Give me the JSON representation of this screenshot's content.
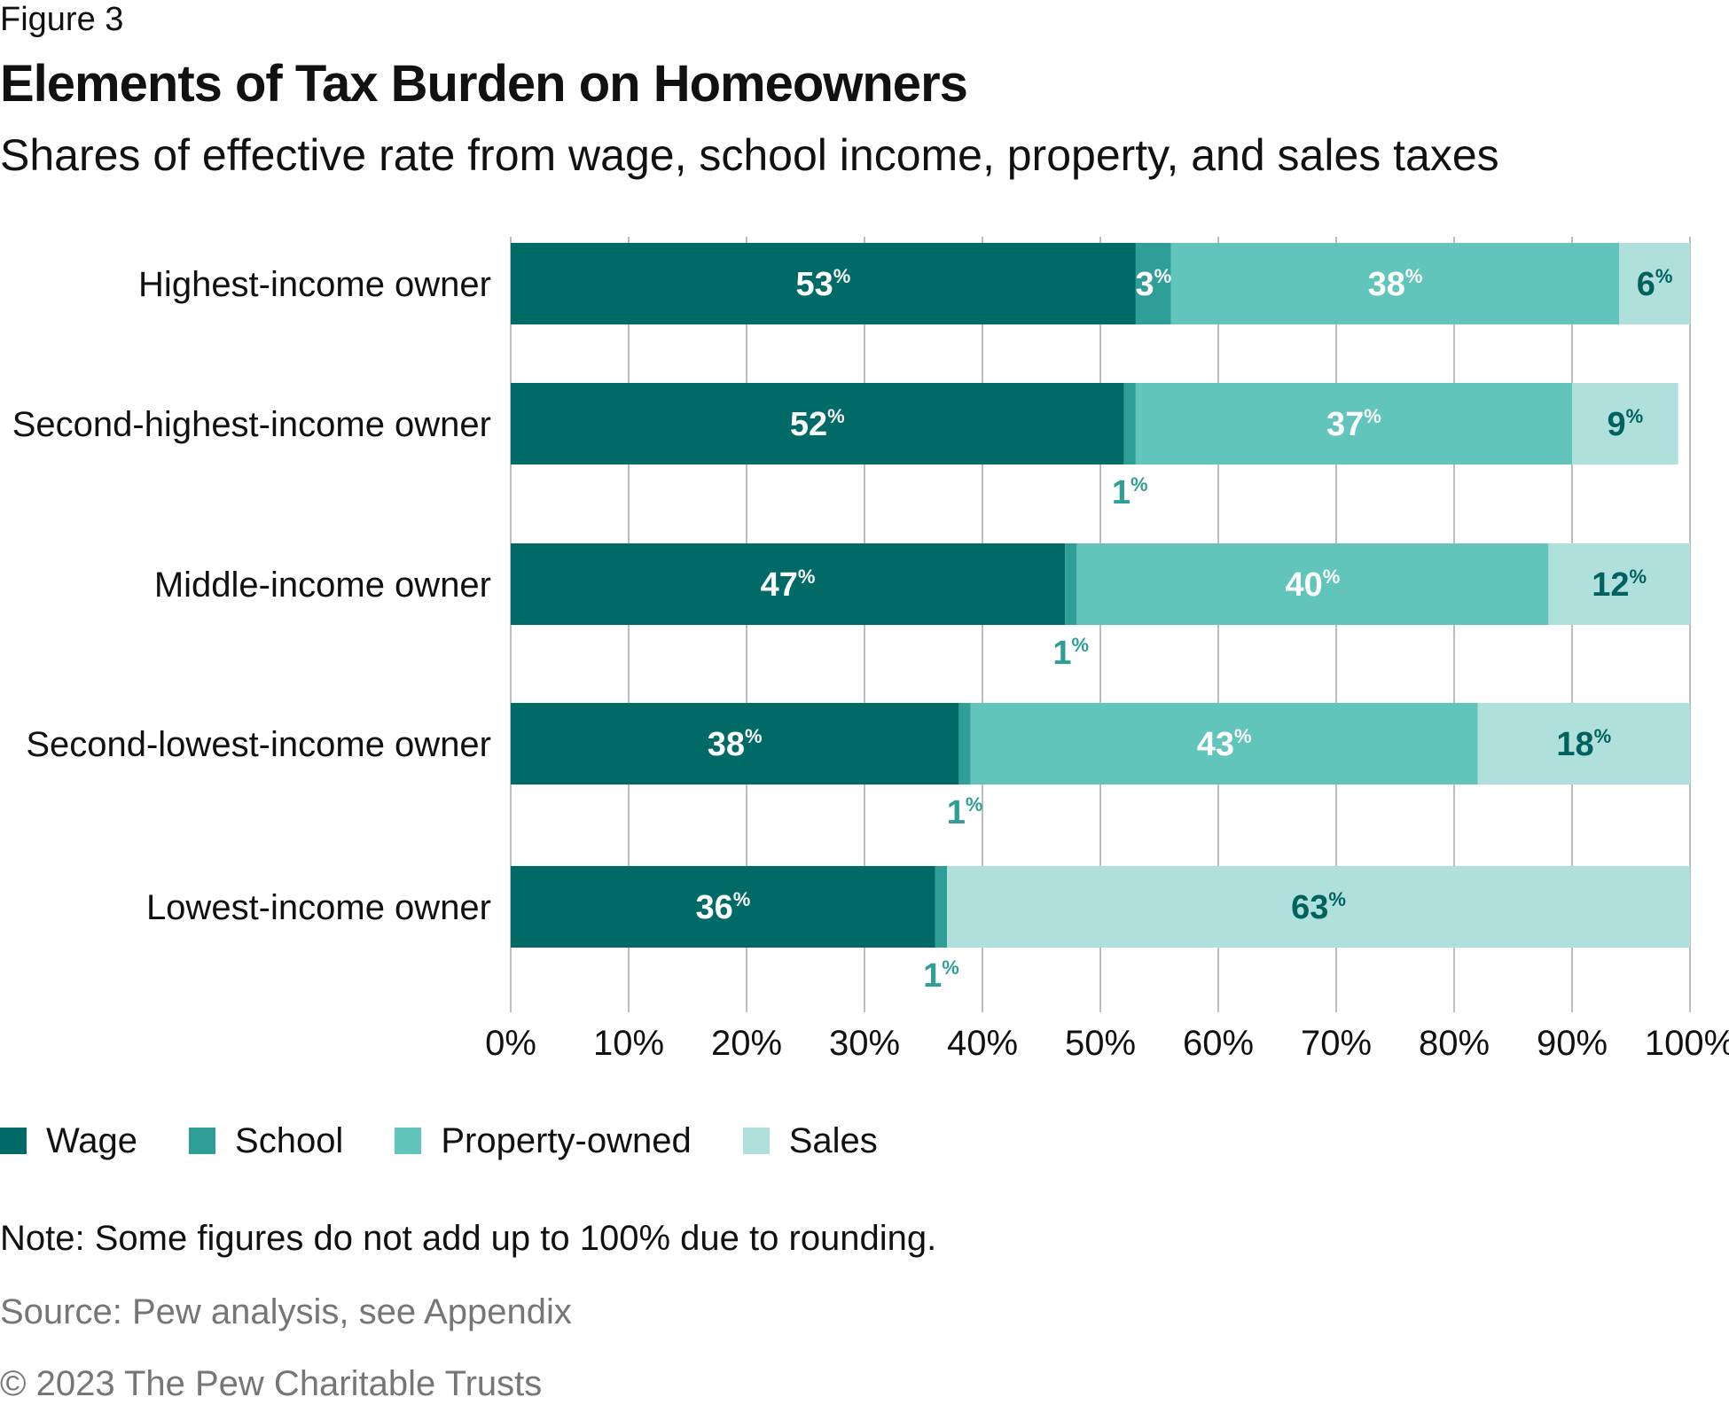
{
  "header": {
    "figure_label": "Figure 3",
    "title": "Elements of Tax Burden on Homeowners",
    "subtitle": "Shares of effective rate from wage, school income, property, and sales taxes"
  },
  "colors": {
    "Wage": "#006a67",
    "School": "#2e9e97",
    "Property-owned": "#62c5bc",
    "Sales": "#b0e0dc",
    "label_light": "#ffffff",
    "label_dark": "#00615e",
    "label_outside": "#2e9e97",
    "gridline": "#bdbdbd"
  },
  "chart_data": {
    "type": "bar",
    "orientation": "horizontal",
    "stacked": true,
    "categories": [
      "Highest-income owner",
      "Second-highest-income owner",
      "Middle-income owner",
      "Second-lowest-income owner",
      "Lowest-income owner"
    ],
    "series": [
      {
        "name": "Wage",
        "values": [
          53,
          52,
          47,
          38,
          36
        ]
      },
      {
        "name": "School",
        "values": [
          3,
          1,
          1,
          1,
          1
        ]
      },
      {
        "name": "Property-owned",
        "values": [
          38,
          37,
          40,
          43,
          null
        ]
      },
      {
        "name": "Sales",
        "values": [
          6,
          9,
          12,
          18,
          63
        ]
      }
    ],
    "xlim": [
      0,
      100
    ],
    "x_ticks": [
      "0%",
      "10%",
      "20%",
      "30%",
      "40%",
      "50%",
      "60%",
      "70%",
      "80%",
      "90%",
      "100%"
    ],
    "grid": "vertical",
    "legend_position": "bottom-left",
    "value_suffix": "%"
  },
  "footer": {
    "note": "Note: Some figures do not add up to 100% due to rounding.",
    "source": "Source: Pew analysis, see Appendix",
    "copyright": "© 2023 The Pew Charitable Trusts"
  }
}
